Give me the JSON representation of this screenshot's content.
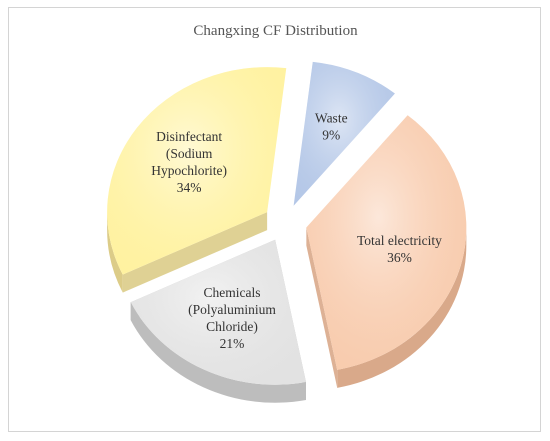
{
  "chart_data": {
    "type": "pie",
    "title": "Changxing CF Distribution",
    "slices": [
      {
        "label_lines": [
          "Waste"
        ],
        "value": 9,
        "value_text": "9%",
        "color": "#b4c7e7",
        "side_color": "#8ea4c9"
      },
      {
        "label_lines": [
          "Total electricity"
        ],
        "value": 36,
        "value_text": "36%",
        "color": "#f8cbad",
        "side_color": "#d9a98a"
      },
      {
        "label_lines": [
          "Chemicals",
          "(Polyaluminium",
          "Chloride)"
        ],
        "value": 21,
        "value_text": "21%",
        "color": "#e2e2e2",
        "side_color": "#bdbdbd"
      },
      {
        "label_lines": [
          "Disinfectant",
          "(Sodium",
          "Hypochlorite)"
        ],
        "value": 34,
        "value_text": "34%",
        "color": "#fff2a0",
        "side_color": "#dccc88"
      }
    ],
    "style": "3d-exploded",
    "legend": "none"
  }
}
